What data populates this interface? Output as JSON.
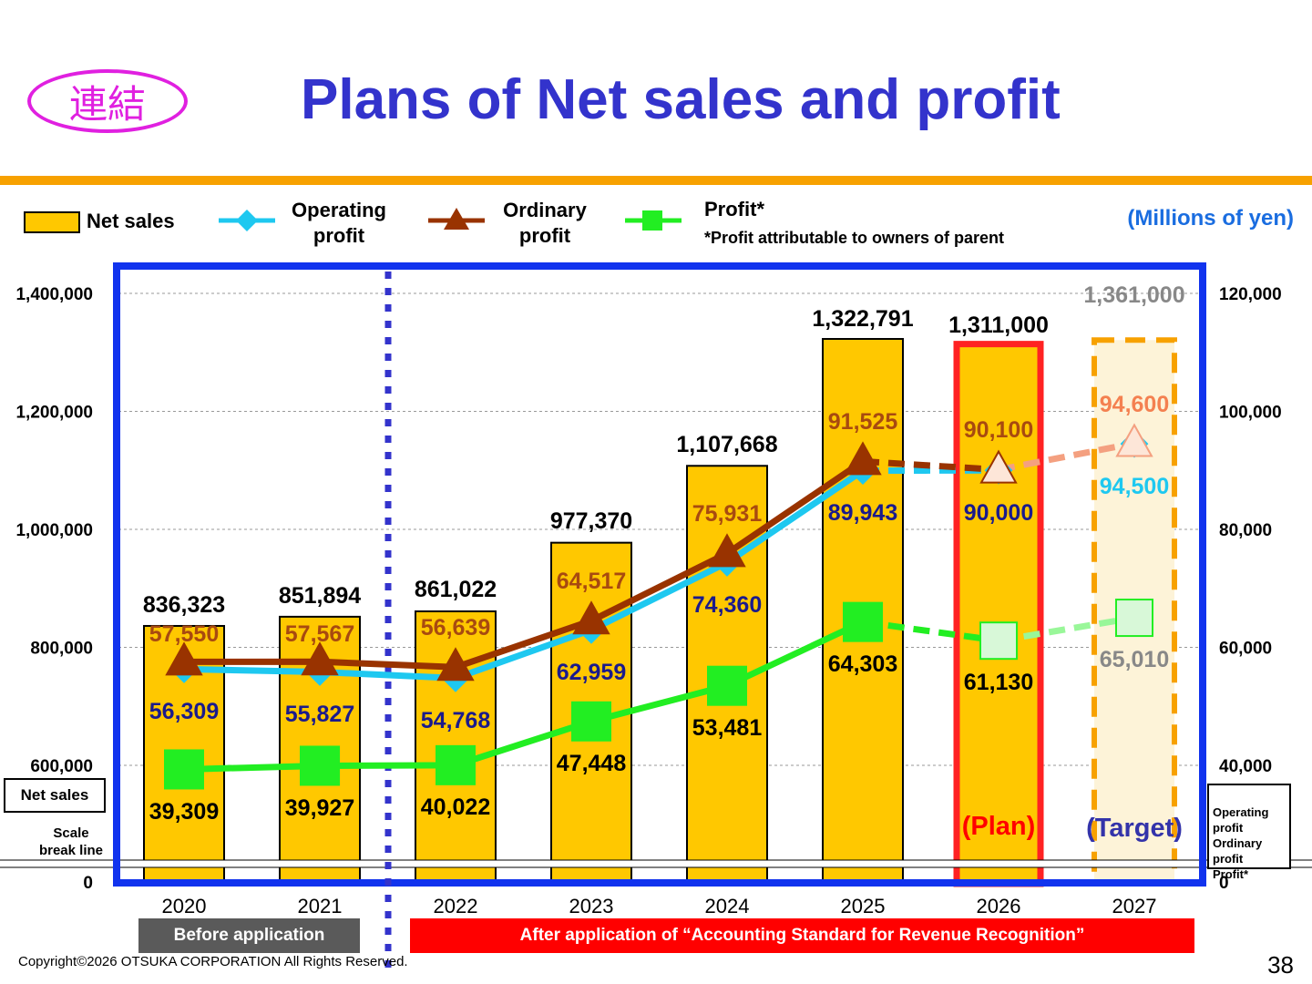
{
  "header": {
    "badge": "連結",
    "title": "Plans of Net sales and profit"
  },
  "legend": {
    "net_sales": "Net sales",
    "operating_profit": "Operating\nprofit",
    "ordinary_profit": "Ordinary\nprofit",
    "profit": "Profit*",
    "profit_note": "*Profit attributable to owners of parent",
    "units": "(Millions of yen)"
  },
  "colors": {
    "bar": "#ffc800",
    "operating": "#1ec8f0",
    "ordinary": "#993300",
    "profit": "#22ee22",
    "frame": "#1133ee",
    "plan": "#ff2222",
    "target": "#f7a100",
    "accent_title": "#3333cc"
  },
  "chart_data": {
    "type": "bar+line",
    "categories": [
      "2020",
      "2021",
      "2022",
      "2023",
      "2024",
      "2025",
      "2026",
      "2027"
    ],
    "net_sales": [
      836323,
      851894,
      861022,
      977370,
      1107668,
      1322791,
      1311000,
      1361000
    ],
    "net_sales_labels": [
      "836,323",
      "851,894",
      "861,022",
      "977,370",
      "1,107,668",
      "1,322,791",
      "1,311,000",
      "1,361,000"
    ],
    "series": [
      {
        "name": "Operating profit",
        "values": [
          56309,
          55827,
          54768,
          62959,
          74360,
          89943,
          90000,
          94500
        ],
        "labels": [
          "56,309",
          "55,827",
          "54,768",
          "62,959",
          "74,360",
          "89,943",
          "90,000",
          "94,500"
        ]
      },
      {
        "name": "Ordinary profit",
        "values": [
          57550,
          57567,
          56639,
          64517,
          75931,
          91525,
          90100,
          94600
        ],
        "labels": [
          "57,550",
          "57,567",
          "56,639",
          "64,517",
          "75,931",
          "91,525",
          "90,100",
          "94,600"
        ]
      },
      {
        "name": "Profit*",
        "values": [
          39309,
          39927,
          40022,
          47448,
          53481,
          64303,
          61130,
          65010
        ],
        "labels": [
          "39,309",
          "39,927",
          "40,022",
          "47,448",
          "53,481",
          "64,303",
          "61,130",
          "65,010"
        ]
      }
    ],
    "left_axis_ticks": [
      "1,400,000",
      "1,200,000",
      "1,000,000",
      "800,000",
      "600,000",
      "0"
    ],
    "right_axis_ticks": [
      "120,000",
      "100,000",
      "80,000",
      "60,000",
      "40,000",
      "0"
    ],
    "left_scale": [
      600000,
      1400000
    ],
    "right_scale": [
      40000,
      120000
    ],
    "plan_label": "(Plan)",
    "target_label": "(Target)",
    "left_axis_box": "Net sales",
    "scale_break_label": "Scale\nbreak line",
    "right_axis_box": "Operating\nprofit\nOrdinary\nprofit\nProfit*",
    "bands": {
      "before": "Before application",
      "after": "After application of “Accounting Standard for Revenue Recognition”"
    }
  },
  "footer": {
    "copyright": "Copyright©2026 OTSUKA CORPORATION All Rights Reserved.",
    "page_number": "38"
  }
}
